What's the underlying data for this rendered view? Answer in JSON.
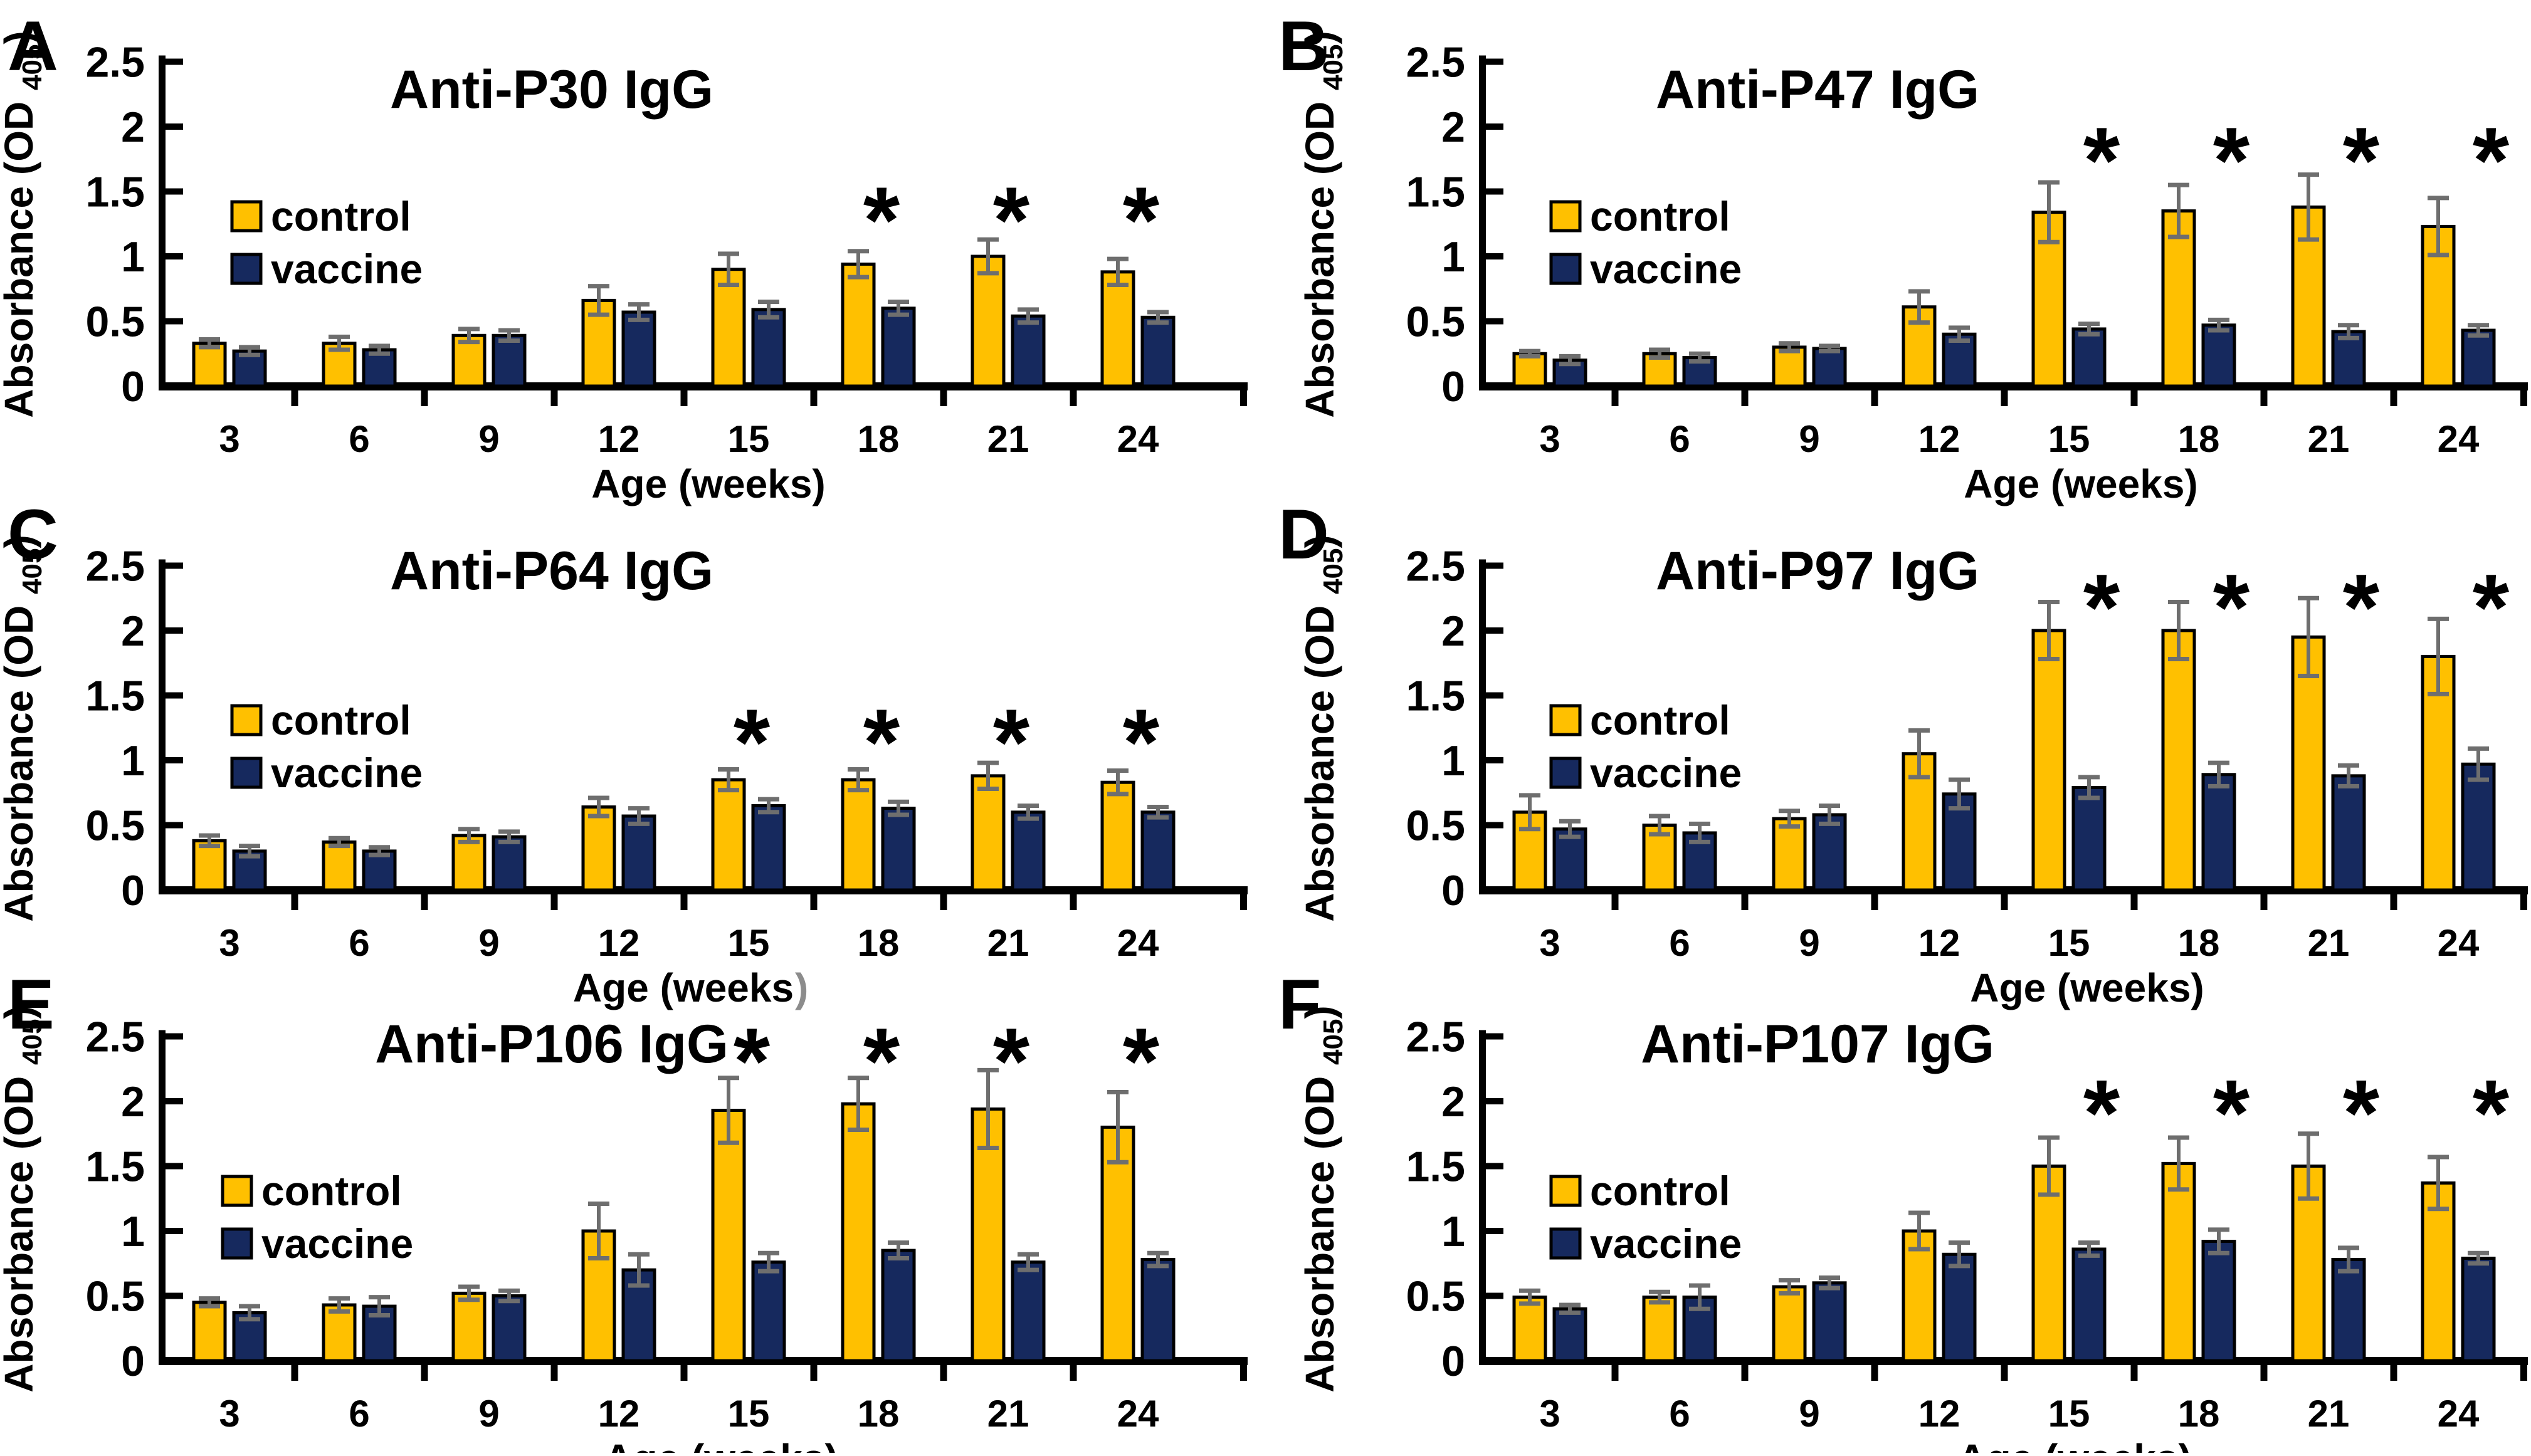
{
  "figure": {
    "description": "Six-panel bar figure of serum IgG responses (control vs vaccine) by age",
    "star_glyph": "*",
    "ylabel_prefix": "Absorbance (OD ",
    "ylabel_sub": "405",
    "ylabel_suffix": ")",
    "y_tick_labels": [
      "0",
      "0.5",
      "1",
      "1.5",
      "2",
      "2.5"
    ],
    "colors": {
      "control": "#FFC000",
      "vaccine": "#16295E",
      "bar_border": "#000000",
      "error_bar": "#6E6E6E",
      "axis": "#000000",
      "text": "#000000",
      "gray_paren": "#8C8C8C"
    },
    "legend_position": "upper-left inside plot"
  },
  "chart_data": [
    {
      "panel": "A",
      "type": "bar",
      "title": "Anti-P30 IgG",
      "xlabel": "Age (weeks)",
      "ylabel": "Absorbance (OD 405)",
      "categories": [
        "3",
        "6",
        "9",
        "12",
        "15",
        "18",
        "21",
        "24"
      ],
      "ylim": [
        0,
        2.5
      ],
      "series": [
        {
          "name": "control",
          "color": "#FFC000",
          "values": [
            0.33,
            0.33,
            0.39,
            0.66,
            0.9,
            0.94,
            1.0,
            0.88
          ],
          "errors": [
            0.03,
            0.05,
            0.05,
            0.11,
            0.12,
            0.1,
            0.13,
            0.1
          ]
        },
        {
          "name": "vaccine",
          "color": "#16295E",
          "values": [
            0.27,
            0.28,
            0.39,
            0.57,
            0.59,
            0.6,
            0.54,
            0.53
          ],
          "errors": [
            0.03,
            0.03,
            0.04,
            0.06,
            0.06,
            0.05,
            0.05,
            0.04
          ]
        }
      ],
      "significant": [
        "18",
        "21",
        "24"
      ],
      "star_y": 1.32,
      "star_dx": 5,
      "xlabel_cx": 1130
    },
    {
      "panel": "B",
      "type": "bar",
      "title": "Anti-P47 IgG",
      "xlabel": "Age (weeks)",
      "ylabel": "Absorbance (OD 405)",
      "categories": [
        "3",
        "6",
        "9",
        "12",
        "15",
        "18",
        "21",
        "24"
      ],
      "ylim": [
        0,
        2.5
      ],
      "series": [
        {
          "name": "control",
          "color": "#FFC000",
          "values": [
            0.25,
            0.25,
            0.3,
            0.61,
            1.34,
            1.35,
            1.38,
            1.23
          ],
          "errors": [
            0.02,
            0.03,
            0.03,
            0.12,
            0.23,
            0.2,
            0.25,
            0.22
          ]
        },
        {
          "name": "vaccine",
          "color": "#16295E",
          "values": [
            0.2,
            0.22,
            0.29,
            0.4,
            0.44,
            0.47,
            0.42,
            0.43
          ],
          "errors": [
            0.03,
            0.03,
            0.02,
            0.05,
            0.04,
            0.04,
            0.05,
            0.04
          ]
        }
      ],
      "significant": [
        "15",
        "18",
        "21",
        "24"
      ],
      "star_y": 1.78,
      "star_dx": 52,
      "xlabel_cx": 1300
    },
    {
      "panel": "C",
      "type": "bar",
      "title": "Anti-P64 IgG",
      "xlabel": "Age (weeks",
      "xlabel_suffix": ")",
      "categories": [
        "3",
        "6",
        "9",
        "12",
        "15",
        "18",
        "21",
        "24"
      ],
      "ylim": [
        0,
        2.5
      ],
      "series": [
        {
          "name": "control",
          "color": "#FFC000",
          "values": [
            0.38,
            0.37,
            0.42,
            0.64,
            0.85,
            0.85,
            0.88,
            0.83
          ],
          "errors": [
            0.04,
            0.03,
            0.05,
            0.07,
            0.08,
            0.08,
            0.1,
            0.09
          ]
        },
        {
          "name": "vaccine",
          "color": "#16295E",
          "values": [
            0.3,
            0.3,
            0.41,
            0.57,
            0.65,
            0.63,
            0.6,
            0.6
          ],
          "errors": [
            0.04,
            0.03,
            0.04,
            0.06,
            0.05,
            0.05,
            0.05,
            0.04
          ]
        }
      ],
      "significant": [
        "15",
        "18",
        "21",
        "24"
      ],
      "star_y": 1.18,
      "star_dx": 5,
      "xlabel_cx": 1090
    },
    {
      "panel": "D",
      "type": "bar",
      "title": "Anti-P97 IgG",
      "xlabel": "Age (weeks)",
      "ylabel": "Absorbance (OD 405)",
      "categories": [
        "3",
        "6",
        "9",
        "12",
        "15",
        "18",
        "21",
        "24"
      ],
      "ylim": [
        0,
        2.5
      ],
      "series": [
        {
          "name": "control",
          "color": "#FFC000",
          "values": [
            0.6,
            0.5,
            0.55,
            1.05,
            2.0,
            2.0,
            1.95,
            1.8
          ],
          "errors": [
            0.13,
            0.07,
            0.06,
            0.18,
            0.22,
            0.22,
            0.3,
            0.29
          ]
        },
        {
          "name": "vaccine",
          "color": "#16295E",
          "values": [
            0.47,
            0.44,
            0.58,
            0.74,
            0.79,
            0.89,
            0.88,
            0.97
          ],
          "errors": [
            0.06,
            0.07,
            0.07,
            0.11,
            0.08,
            0.09,
            0.08,
            0.12
          ]
        }
      ],
      "significant": [
        "15",
        "18",
        "21",
        "24"
      ],
      "star_y": 2.22,
      "star_dx": 52,
      "xlabel_cx": 1310
    },
    {
      "panel": "E",
      "type": "bar",
      "title": "Anti-P106 IgG",
      "xlabel": "Age (weeks)",
      "ylabel": "Absorbance (OD 405)",
      "categories": [
        "3",
        "6",
        "9",
        "12",
        "15",
        "18",
        "21",
        "24"
      ],
      "ylim": [
        0,
        2.5
      ],
      "series": [
        {
          "name": "control",
          "color": "#FFC000",
          "values": [
            0.45,
            0.43,
            0.52,
            1.0,
            1.93,
            1.98,
            1.94,
            1.8
          ],
          "errors": [
            0.03,
            0.05,
            0.05,
            0.21,
            0.25,
            0.2,
            0.3,
            0.27
          ]
        },
        {
          "name": "vaccine",
          "color": "#16295E",
          "values": [
            0.37,
            0.42,
            0.5,
            0.7,
            0.76,
            0.85,
            0.76,
            0.78
          ],
          "errors": [
            0.05,
            0.07,
            0.04,
            0.12,
            0.07,
            0.06,
            0.06,
            0.05
          ]
        }
      ],
      "significant": [
        "15",
        "18",
        "21",
        "24"
      ],
      "star_y": 2.35,
      "star_dx": 5,
      "xlabel_cx": 1150
    },
    {
      "panel": "F",
      "type": "bar",
      "title": "Anti-P107 IgG",
      "xlabel": "Age (weeks)",
      "ylabel": "Absorbance (OD 405)",
      "categories": [
        "3",
        "6",
        "9",
        "12",
        "15",
        "18",
        "21",
        "24"
      ],
      "ylim": [
        0,
        2.5
      ],
      "series": [
        {
          "name": "control",
          "color": "#FFC000",
          "values": [
            0.49,
            0.49,
            0.57,
            1.0,
            1.5,
            1.52,
            1.5,
            1.37
          ],
          "errors": [
            0.05,
            0.04,
            0.05,
            0.14,
            0.22,
            0.2,
            0.25,
            0.2
          ]
        },
        {
          "name": "vaccine",
          "color": "#16295E",
          "values": [
            0.4,
            0.49,
            0.6,
            0.82,
            0.86,
            0.92,
            0.78,
            0.79
          ],
          "errors": [
            0.03,
            0.09,
            0.04,
            0.09,
            0.05,
            0.09,
            0.09,
            0.04
          ]
        }
      ],
      "significant": [
        "15",
        "18",
        "21",
        "24"
      ],
      "star_y": 1.95,
      "star_dx": 52,
      "xlabel_cx": 1290
    }
  ]
}
